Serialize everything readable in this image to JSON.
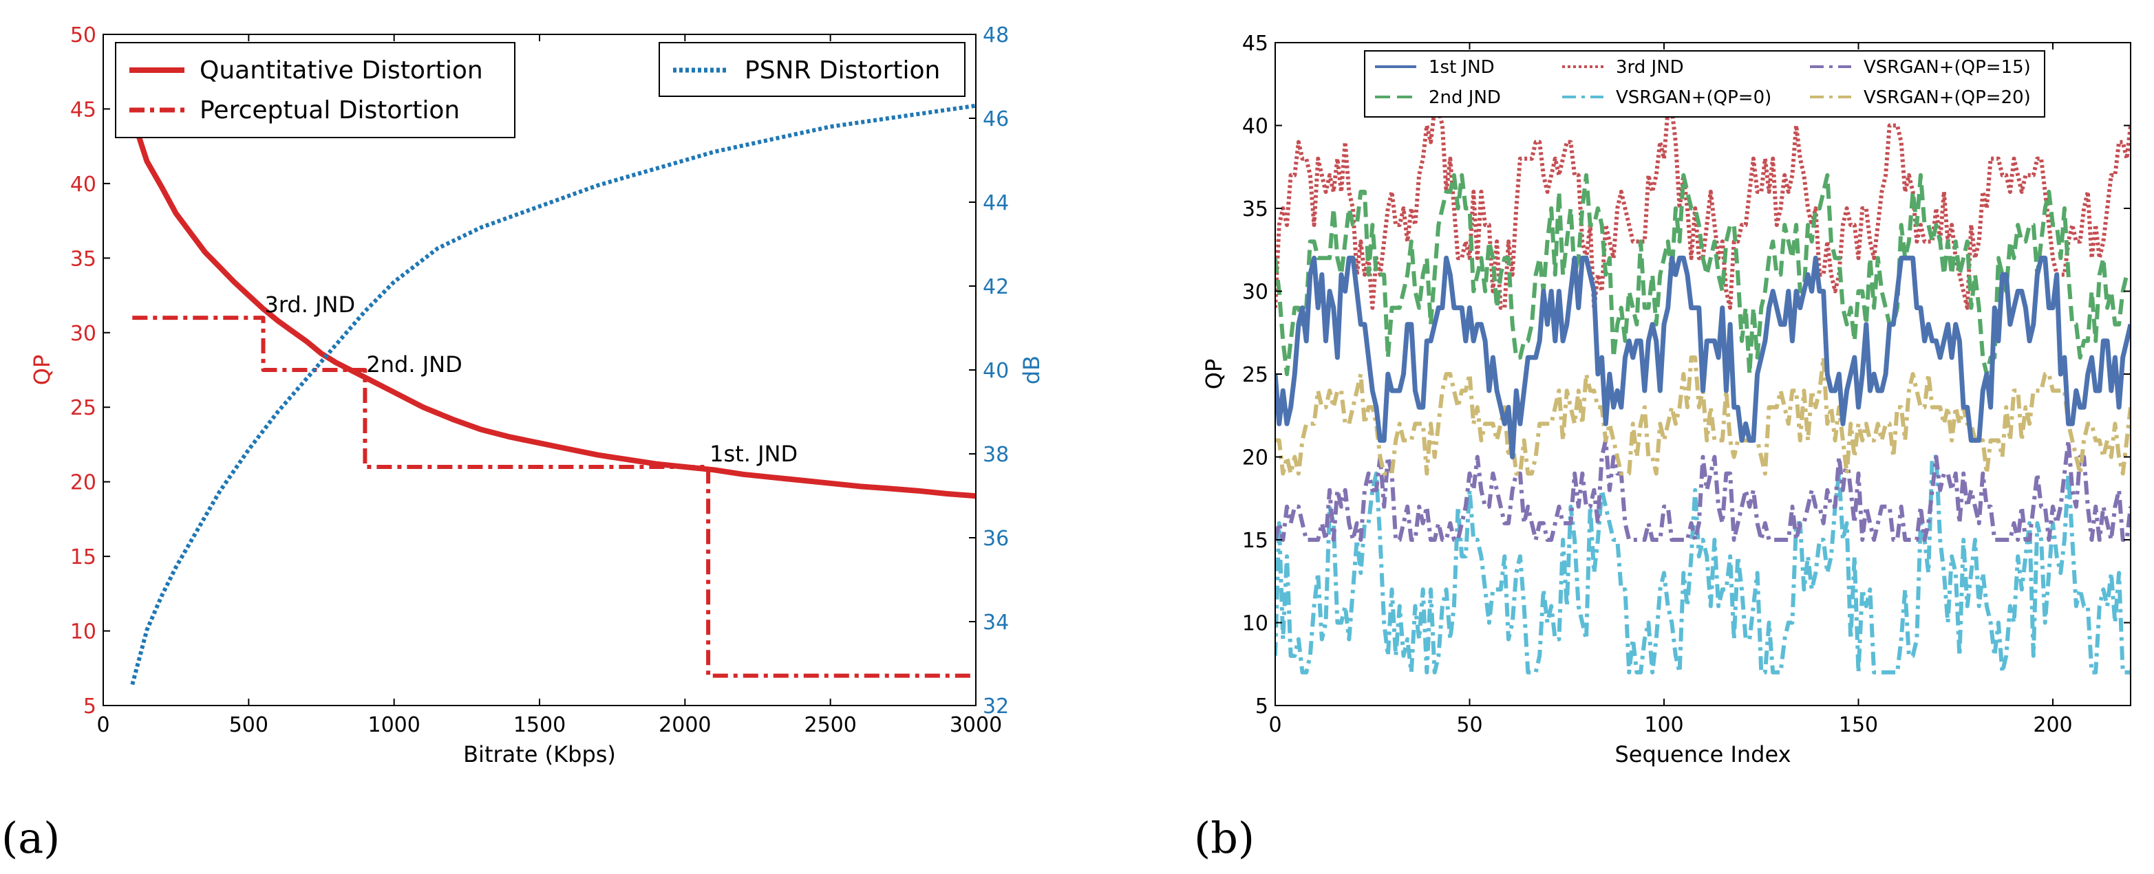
{
  "colors": {
    "red": "#d62728",
    "blue": "#1f77b4",
    "b1": "#4c72b0",
    "b2": "#55a868",
    "b3": "#c44e52",
    "b4": "#5bbcd6",
    "b5": "#8172b2",
    "b6": "#ccb974",
    "axis": "#000000"
  },
  "panel_labels": {
    "a": "(a)",
    "b": "(b)"
  },
  "chart_data": [
    {
      "type": "line",
      "title": "",
      "xlabel": "Bitrate (Kbps)",
      "ylabel": "QP",
      "y2label": "dB",
      "xlim": [
        0,
        3000
      ],
      "ylim": [
        5,
        50
      ],
      "y2lim": [
        32,
        48
      ],
      "xticks": [
        0,
        500,
        1000,
        1500,
        2000,
        2500,
        3000
      ],
      "yticks": [
        5,
        10,
        15,
        20,
        25,
        30,
        35,
        40,
        45,
        50
      ],
      "y2ticks": [
        32,
        34,
        36,
        38,
        40,
        42,
        44,
        46,
        48
      ],
      "legend_left": {
        "position": "top-left",
        "entries": [
          "Quantitative Distortion",
          "Perceptual Distortion"
        ]
      },
      "legend_right": {
        "position": "top-right",
        "entries": [
          "PSNR Distortion"
        ]
      },
      "series": [
        {
          "name": "Quantitative Distortion",
          "axis": "left",
          "style": "solid",
          "color": "#d62728",
          "x": [
            100,
            150,
            200,
            250,
            300,
            350,
            400,
            450,
            500,
            550,
            600,
            650,
            700,
            750,
            800,
            850,
            900,
            1000,
            1100,
            1200,
            1300,
            1400,
            1500,
            1600,
            1700,
            1800,
            1900,
            2000,
            2100,
            2200,
            2300,
            2400,
            2500,
            2600,
            2700,
            2800,
            2900,
            3000
          ],
          "y": [
            44.5,
            41.5,
            39.8,
            38.0,
            36.7,
            35.4,
            34.4,
            33.4,
            32.5,
            31.6,
            30.8,
            30.1,
            29.4,
            28.6,
            28.0,
            27.5,
            27.0,
            26.0,
            25.0,
            24.2,
            23.5,
            23.0,
            22.6,
            22.2,
            21.8,
            21.5,
            21.2,
            21.0,
            20.8,
            20.5,
            20.3,
            20.1,
            19.9,
            19.7,
            19.55,
            19.4,
            19.2,
            19.05
          ]
        },
        {
          "name": "Perceptual Distortion",
          "axis": "left",
          "style": "dashdot",
          "color": "#d62728",
          "x": [
            100,
            550,
            550,
            900,
            900,
            2080,
            2080,
            3000
          ],
          "y": [
            31,
            31,
            27.5,
            27.5,
            21,
            21,
            7,
            7
          ]
        },
        {
          "name": "PSNR Distortion",
          "axis": "right",
          "style": "dotted",
          "color": "#1f77b4",
          "x": [
            100,
            150,
            200,
            250,
            300,
            400,
            500,
            600,
            700,
            800,
            900,
            1000,
            1150,
            1300,
            1500,
            1700,
            1900,
            2100,
            2300,
            2500,
            2700,
            2900,
            3000
          ],
          "y": [
            32.5,
            33.8,
            34.6,
            35.3,
            35.9,
            37.1,
            38.1,
            39.0,
            39.8,
            40.6,
            41.4,
            42.1,
            42.9,
            43.4,
            43.9,
            44.4,
            44.8,
            45.2,
            45.5,
            45.8,
            46.0,
            46.2,
            46.3
          ]
        }
      ],
      "annotations": [
        {
          "text": "3rd. JND",
          "x": 550,
          "y": 31
        },
        {
          "text": "2nd. JND",
          "x": 900,
          "y": 27
        },
        {
          "text": "1st. JND",
          "x": 2080,
          "y": 21
        }
      ]
    },
    {
      "type": "line",
      "title": "",
      "xlabel": "Sequence Index",
      "ylabel": "QP",
      "xlim": [
        0,
        220
      ],
      "ylim": [
        5,
        45
      ],
      "xticks": [
        0,
        50,
        100,
        150,
        200
      ],
      "yticks": [
        5,
        10,
        15,
        20,
        25,
        30,
        35,
        40,
        45
      ],
      "legend": {
        "position": "top",
        "columns": 3
      },
      "series": [
        {
          "name": "1st JND",
          "style": "solid",
          "color": "#4c72b0",
          "center": 27,
          "amp": 3.2,
          "noise": 2.5,
          "min": 16,
          "max": 32,
          "seed": 11
        },
        {
          "name": "2nd JND",
          "style": "dashed",
          "color": "#55a868",
          "center": 31.5,
          "amp": 3.0,
          "noise": 2.5,
          "min": 22,
          "max": 37,
          "seed": 23
        },
        {
          "name": "3rd JND",
          "style": "dotted",
          "color": "#c44e52",
          "center": 35,
          "amp": 2.8,
          "noise": 2.2,
          "min": 27,
          "max": 41,
          "seed": 37
        },
        {
          "name": "VSRGAN+(QP=0)",
          "style": "dashdot",
          "color": "#5bbcd6",
          "center": 11.5,
          "amp": 3.0,
          "noise": 4.0,
          "min": 7,
          "max": 21,
          "seed": 41
        },
        {
          "name": "VSRGAN+(QP=15)",
          "style": "dashdot",
          "color": "#8172b2",
          "center": 16.5,
          "amp": 1.8,
          "noise": 2.0,
          "min": 15,
          "max": 22,
          "seed": 53
        },
        {
          "name": "VSRGAN+(QP=20)",
          "style": "dashdot",
          "color": "#ccb974",
          "center": 22,
          "amp": 1.6,
          "noise": 1.8,
          "min": 19,
          "max": 27,
          "seed": 67
        }
      ],
      "legend_order": [
        "1st JND",
        "3rd JND",
        "VSRGAN+(QP=15)",
        "2nd JND",
        "VSRGAN+(QP=0)",
        "VSRGAN+(QP=20)"
      ]
    }
  ]
}
